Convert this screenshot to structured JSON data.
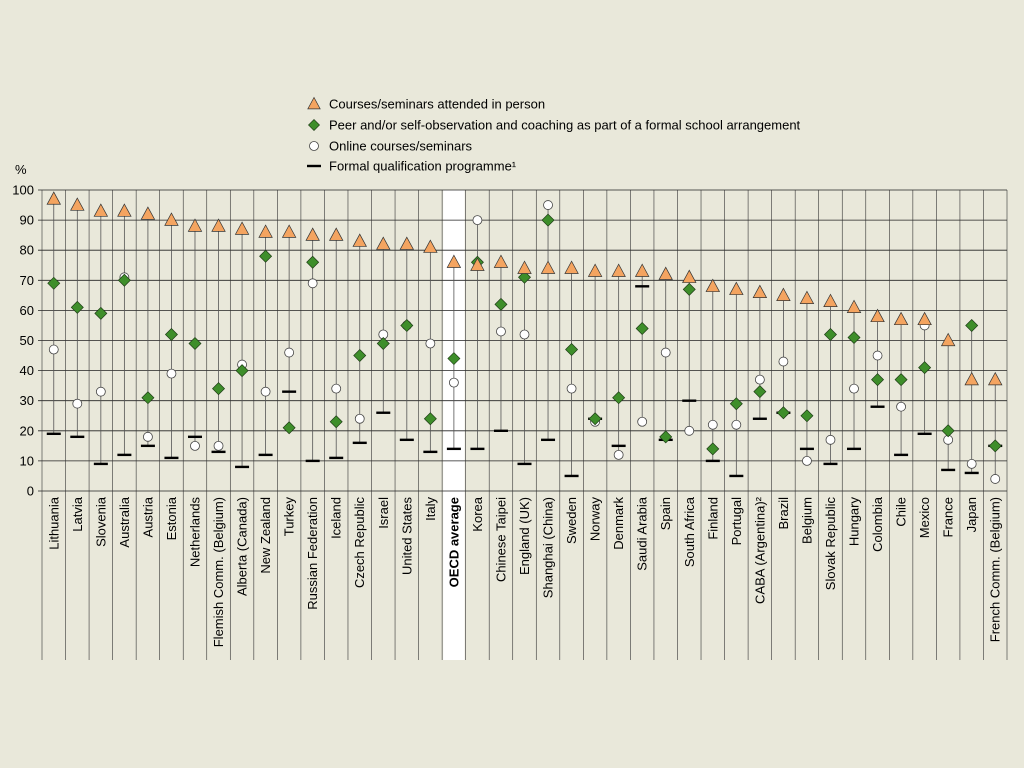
{
  "chart_data": {
    "type": "scatter",
    "ylabel": "%",
    "ylim": [
      0,
      100
    ],
    "yticks": [
      0,
      10,
      20,
      30,
      40,
      50,
      60,
      70,
      80,
      90,
      100
    ],
    "highlight_category": "OECD average",
    "colors": {
      "triangle": "#f4a460",
      "diamond": "#3e8e2a",
      "circle": "#ffffff",
      "bar": "#000000",
      "band": "#ffffff"
    },
    "legend": [
      {
        "name": "Courses/seminars attended in person",
        "marker": "triangle"
      },
      {
        "name": "Peer and/or self-observation and coaching as part of a formal school arrangement",
        "marker": "diamond"
      },
      {
        "name": "Online courses/seminars",
        "marker": "circle"
      },
      {
        "name": "Formal qualification programme¹",
        "marker": "bar"
      }
    ],
    "categories": [
      "Lithuania",
      "Latvia",
      "Slovenia",
      "Australia",
      "Austria",
      "Estonia",
      "Netherlands",
      "Flemish Comm. (Belgium)",
      "Alberta (Canada)",
      "New Zealand",
      "Turkey",
      "Russian Federation",
      "Iceland",
      "Czech Republic",
      "Israel",
      "United States",
      "Italy",
      "OECD average",
      "Korea",
      "Chinese Taipei",
      "England (UK)",
      "Shanghai (China)",
      "Sweden",
      "Norway",
      "Denmark",
      "Saudi Arabia",
      "Spain",
      "South Africa",
      "Finland",
      "Portugal",
      "CABA (Argentina)²",
      "Brazil",
      "Belgium",
      "Slovak Republic",
      "Hungary",
      "Colombia",
      "Chile",
      "Mexico",
      "France",
      "Japan",
      "French Comm. (Belgium)"
    ],
    "series": [
      {
        "name": "Courses/seminars attended in person",
        "values": [
          97,
          95,
          93,
          93,
          92,
          90,
          88,
          88,
          87,
          86,
          86,
          85,
          85,
          83,
          82,
          82,
          81,
          76,
          75,
          76,
          74,
          74,
          74,
          73,
          73,
          73,
          72,
          71,
          68,
          67,
          66,
          65,
          64,
          63,
          61,
          58,
          57,
          57,
          50,
          37,
          37
        ]
      },
      {
        "name": "Peer and/or self-observation and coaching as part of a formal school arrangement",
        "values": [
          69,
          61,
          59,
          70,
          31,
          52,
          49,
          34,
          40,
          78,
          21,
          76,
          23,
          45,
          49,
          55,
          24,
          44,
          76,
          62,
          71,
          90,
          47,
          24,
          31,
          54,
          18,
          67,
          14,
          29,
          33,
          26,
          25,
          52,
          51,
          37,
          37,
          41,
          20,
          55,
          15
        ]
      },
      {
        "name": "Online courses/seminars",
        "values": [
          47,
          29,
          33,
          71,
          18,
          39,
          15,
          15,
          42,
          33,
          46,
          69,
          34,
          24,
          52,
          55,
          49,
          36,
          90,
          53,
          52,
          95,
          34,
          23,
          12,
          23,
          46,
          20,
          22,
          22,
          37,
          43,
          10,
          17,
          34,
          45,
          28,
          55,
          17,
          9,
          4
        ]
      },
      {
        "name": "Formal qualification programme¹",
        "values": [
          19,
          18,
          9,
          12,
          15,
          11,
          18,
          13,
          8,
          12,
          33,
          10,
          11,
          16,
          26,
          17,
          13,
          14,
          14,
          20,
          9,
          17,
          5,
          24,
          15,
          68,
          17,
          30,
          10,
          5,
          24,
          26,
          14,
          9,
          14,
          28,
          12,
          19,
          7,
          6,
          15
        ]
      }
    ]
  }
}
